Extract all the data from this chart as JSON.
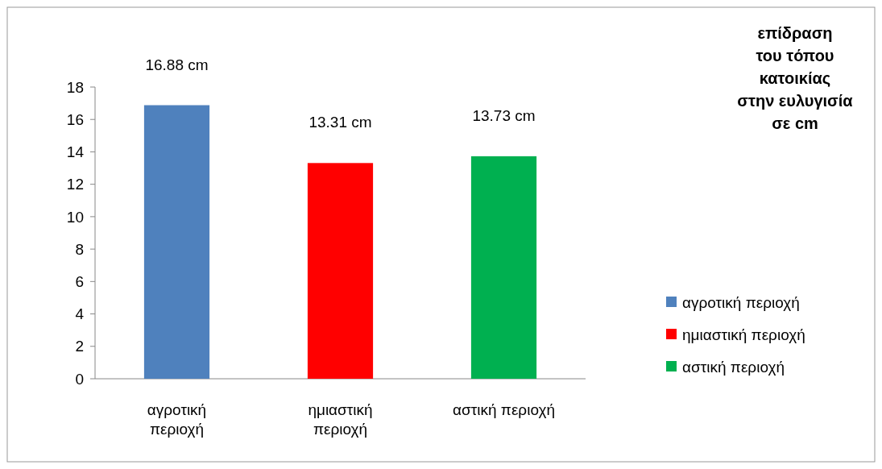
{
  "chart_data": {
    "type": "bar",
    "title": "επίδραση\nτου τόπου\nκατοικίας\nστην ευλυγισία\nσε cm",
    "categories": [
      "αγροτική περιοχή",
      "ημιαστική περιοχή",
      "αστική περιοχή"
    ],
    "series": [
      {
        "name": "αγροτική περιοχή",
        "color": "#4f81bd",
        "values": [
          16.88,
          null,
          null
        ],
        "value_labels": [
          "16.88 cm",
          null,
          null
        ]
      },
      {
        "name": "ημιαστική περιοχή",
        "color": "#ff0000",
        "values": [
          null,
          13.31,
          null
        ],
        "value_labels": [
          null,
          "13.31 cm",
          null
        ]
      },
      {
        "name": "αστική περιοχή",
        "color": "#00b050",
        "values": [
          null,
          null,
          13.73
        ],
        "value_labels": [
          null,
          null,
          "13.73 cm"
        ]
      }
    ],
    "ylim": [
      0,
      18
    ],
    "yticks": [
      0,
      2,
      4,
      6,
      8,
      10,
      12,
      14,
      16,
      18
    ],
    "legend": "right"
  }
}
